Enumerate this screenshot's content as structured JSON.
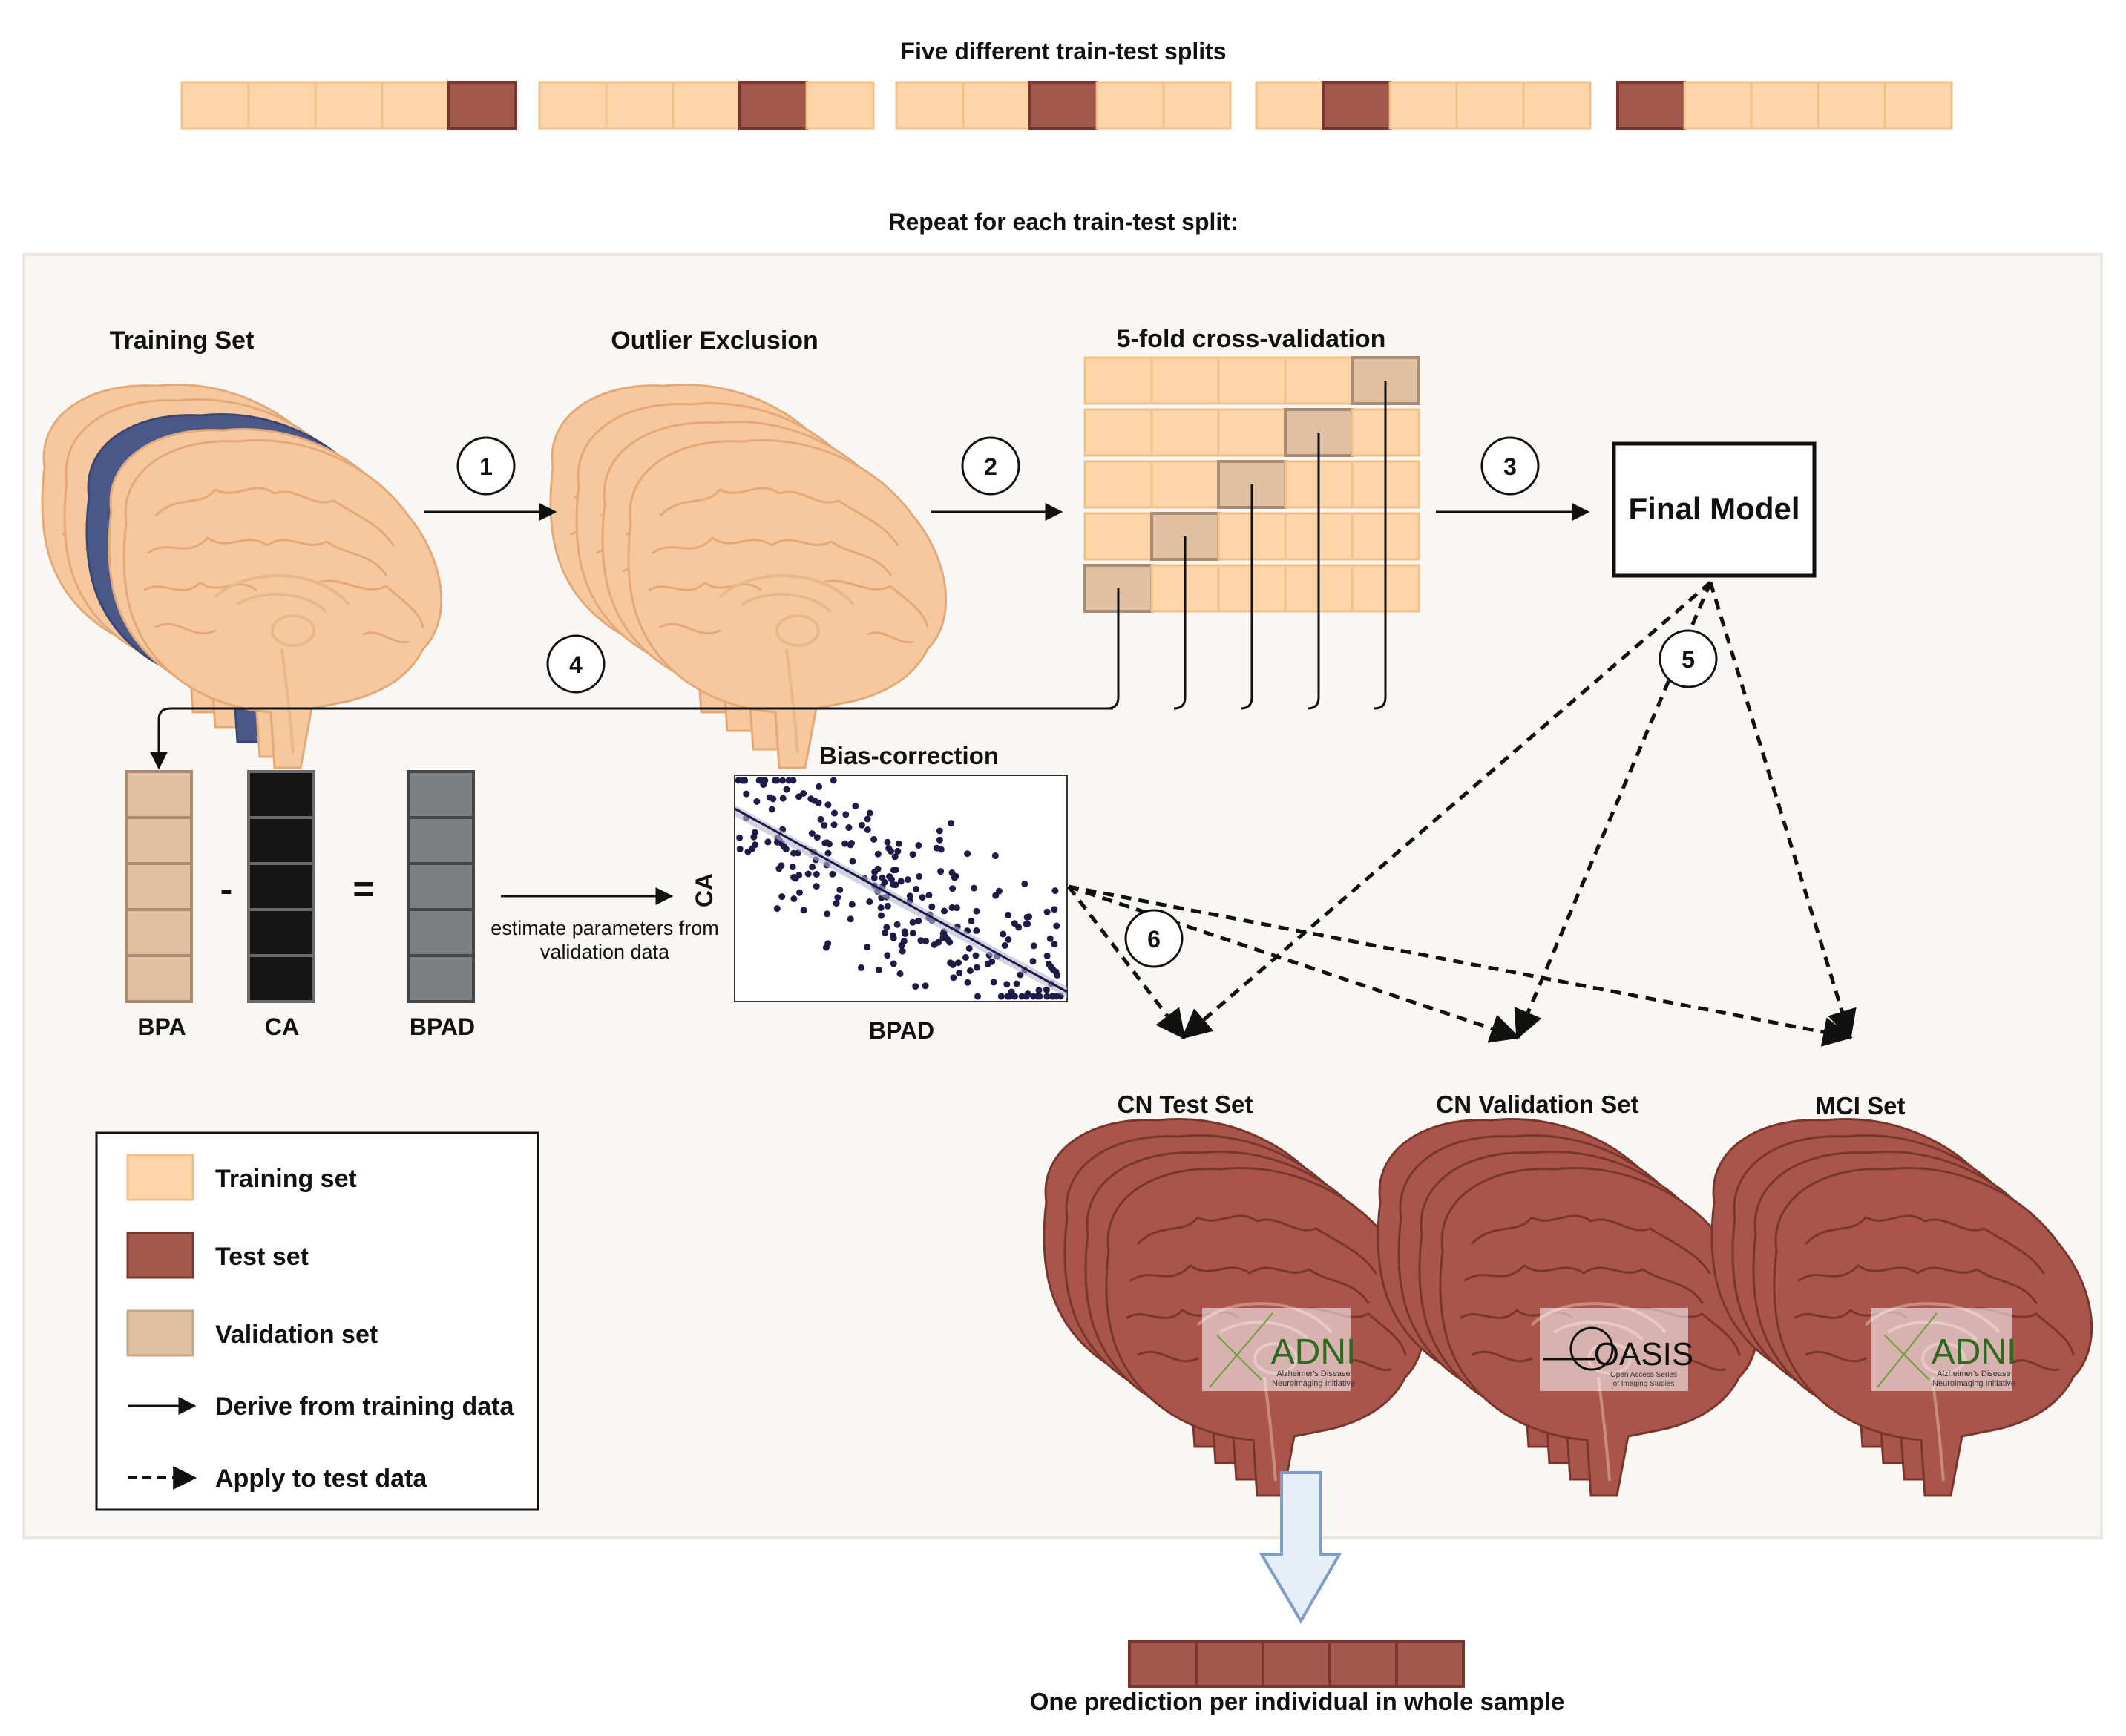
{
  "title_splits": "Five different train-test splits",
  "title_repeat": "Repeat for each train-test split:",
  "stages": {
    "training_set": "Training Set",
    "outlier_exclusion": "Outlier Exclusion",
    "cross_validation": "5-fold cross-validation",
    "final_model": "Final Model"
  },
  "steps": [
    "1",
    "2",
    "3",
    "4",
    "5",
    "6"
  ],
  "bpad": {
    "bpa": "BPA",
    "ca": "CA",
    "result": "BPAD",
    "minus": "-",
    "equals": "="
  },
  "bias_correction": {
    "title": "Bias-correction",
    "xlabel": "BPAD",
    "ylabel": "CA",
    "note_line1": "estimate parameters from",
    "note_line2": "validation data"
  },
  "sets": {
    "cn_test": "CN Test Set",
    "cn_validation": "CN Validation Set",
    "mci": "MCI Set"
  },
  "logos": {
    "adni": "ADNI",
    "adni_sub1": "Alzheimer's Disease",
    "adni_sub2": "Neuroimaging Initiative",
    "oasis": "OASIS",
    "oasis_sub1": "Open Access Series",
    "oasis_sub2": "of Imaging Studies"
  },
  "legend": {
    "training": "Training set",
    "test": "Test set",
    "validation": "Validation set",
    "derive": "Derive from training data",
    "apply": "Apply to test data"
  },
  "output_label": "One prediction per individual in whole sample",
  "colors": {
    "training": "#fdd5a8",
    "test": "#a3584d",
    "validation": "#dfc0a3",
    "panel_bg": "#f9f7f3",
    "brain_training": "#f7c89d",
    "brain_test": "#a9554c",
    "brain_band": "#4a5889"
  },
  "chart_data": {
    "type": "scatter",
    "title": "Bias-correction",
    "xlabel": "BPAD",
    "ylabel": "CA",
    "trend": "negative linear fit with confidence band"
  }
}
